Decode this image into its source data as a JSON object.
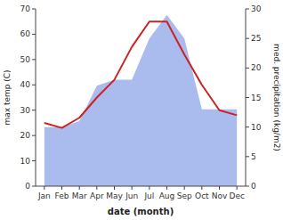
{
  "chart_data": {
    "type": "line",
    "categories": [
      "Jan",
      "Feb",
      "Mar",
      "Apr",
      "May",
      "Jun",
      "Jul",
      "Aug",
      "Sep",
      "Oct",
      "Nov",
      "Dec"
    ],
    "xlabel": "date (month)",
    "ylabel": "max temp (C)",
    "y2label": "med. precipitation (kg/m2)",
    "ylim": [
      0,
      70
    ],
    "yticks": [
      0,
      10,
      20,
      30,
      40,
      50,
      60,
      70
    ],
    "y2lim": [
      0,
      30
    ],
    "y2ticks": [
      0,
      5,
      10,
      15,
      20,
      25,
      30
    ],
    "grid": false,
    "series": [
      {
        "type": "area",
        "axis": "y2",
        "color": "#aabbee",
        "values": [
          10,
          10,
          11,
          17,
          18,
          18,
          25,
          29,
          25,
          13,
          13,
          13
        ]
      },
      {
        "type": "line",
        "color": "#cc2222",
        "values": [
          25,
          23,
          27,
          35,
          42,
          55,
          65,
          65,
          52,
          40,
          30,
          28
        ]
      }
    ]
  }
}
